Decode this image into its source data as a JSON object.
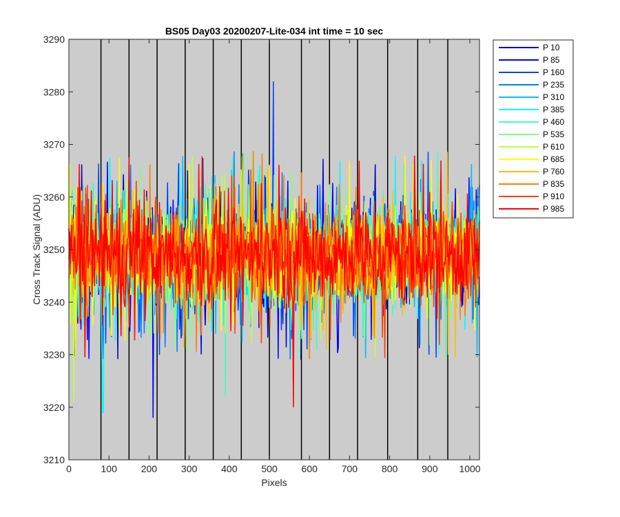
{
  "chart_data": {
    "type": "line",
    "title": "BS05 Day03 20200207-Lite-034 int time = 10 sec",
    "xlabel": "Pixels",
    "ylabel": "Cross Track Signal (ADU)",
    "xlim": [
      0,
      1024
    ],
    "ylim": [
      3210,
      3290
    ],
    "xticks": [
      "0",
      "100",
      "200",
      "300",
      "400",
      "500",
      "600",
      "700",
      "800",
      "900",
      "1000"
    ],
    "yticks": [
      "3210",
      "3220",
      "3230",
      "3240",
      "3250",
      "3260",
      "3270",
      "3280",
      "3290"
    ],
    "grid": false,
    "background": "#cccccc",
    "legend_position": "outside-top-right",
    "vertical_lines": [
      80,
      150,
      220,
      290,
      360,
      430,
      500,
      580,
      650,
      720,
      795,
      870,
      945
    ],
    "series": [
      {
        "name": "P 10",
        "color": "#0000bf",
        "mean": 3249,
        "spread": 8
      },
      {
        "name": "P 85",
        "color": "#0000ff",
        "mean": 3249,
        "spread": 8
      },
      {
        "name": "P 160",
        "color": "#0040ff",
        "mean": 3249,
        "spread": 8
      },
      {
        "name": "P 235",
        "color": "#0080ff",
        "mean": 3249,
        "spread": 8
      },
      {
        "name": "P 310",
        "color": "#00bfff",
        "mean": 3249,
        "spread": 8
      },
      {
        "name": "P 385",
        "color": "#00ffff",
        "mean": 3249,
        "spread": 8
      },
      {
        "name": "P 460",
        "color": "#40ffbf",
        "mean": 3249,
        "spread": 8
      },
      {
        "name": "P 535",
        "color": "#80ff80",
        "mean": 3249,
        "spread": 8
      },
      {
        "name": "P 610",
        "color": "#bfff40",
        "mean": 3249,
        "spread": 8
      },
      {
        "name": "P 685",
        "color": "#ffff00",
        "mean": 3249,
        "spread": 8
      },
      {
        "name": "P 760",
        "color": "#ffbf00",
        "mean": 3249,
        "spread": 8
      },
      {
        "name": "P 835",
        "color": "#ff8000",
        "mean": 3249,
        "spread": 8
      },
      {
        "name": "P 910",
        "color": "#ff4000",
        "mean": 3249,
        "spread": 8
      },
      {
        "name": "P 985",
        "color": "#ff0000",
        "mean": 3249,
        "spread": 8
      }
    ],
    "notable_points": [
      {
        "series": "P 160",
        "x": 510,
        "y": 3282
      },
      {
        "series": "P 85",
        "x": 210,
        "y": 3218
      },
      {
        "series": "P 385",
        "x": 85,
        "y": 3219
      },
      {
        "series": "P 985",
        "x": 560,
        "y": 3220
      },
      {
        "series": "P 460",
        "x": 390,
        "y": 3222
      },
      {
        "series": "P 610",
        "x": 12,
        "y": 3221
      }
    ]
  }
}
